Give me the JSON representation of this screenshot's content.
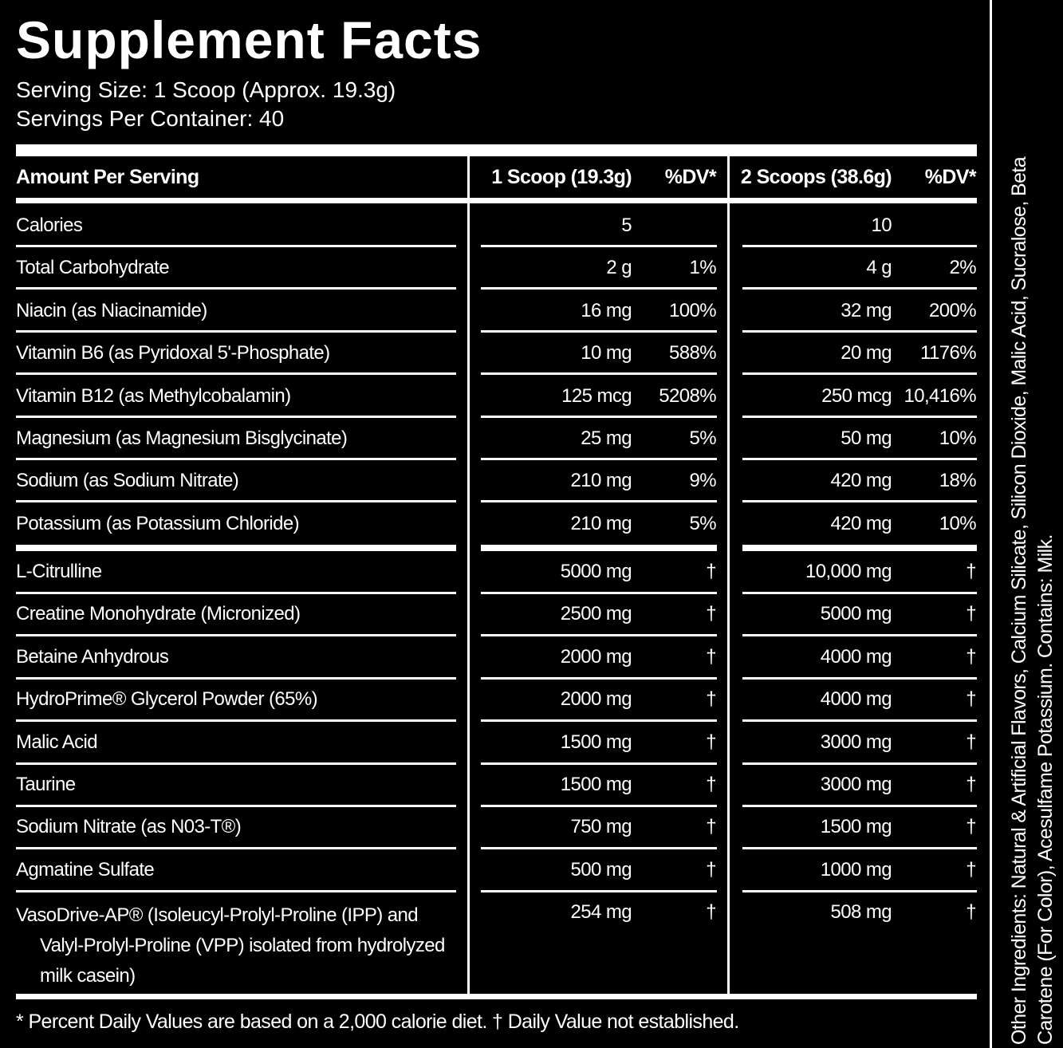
{
  "title": "Supplement Facts",
  "serving_size": "Serving Size: 1 Scoop (Approx. 19.3g)",
  "servings_per_container": "Servings Per Container: 40",
  "table": {
    "header": [
      "Amount Per Serving",
      "1 Scoop (19.3g)",
      "%DV*",
      "2 Scoops (38.6g)",
      "%DV*"
    ],
    "rows": [
      [
        "Calories",
        "5",
        null,
        "10",
        null
      ],
      [
        "Total Carbohydrate",
        "2 g",
        "1%",
        "4 g",
        "2%"
      ],
      [
        "Niacin (as Niacinamide)",
        "16 mg",
        "100%",
        "32 mg",
        "200%"
      ],
      [
        "Vitamin B6 (as Pyridoxal 5'-Phosphate)",
        "10 mg",
        "588%",
        "20 mg",
        "1176%"
      ],
      [
        "Vitamin B12 (as Methylcobalamin)",
        "125 mcg",
        "5208%",
        "250 mcg",
        "10,416%"
      ],
      [
        "Magnesium (as Magnesium Bisglycinate)",
        "25 mg",
        "5%",
        "50 mg",
        "10%"
      ],
      [
        "Sodium (as Sodium Nitrate)",
        "210 mg",
        "9%",
        "420 mg",
        "18%"
      ],
      [
        "Potassium (as Potassium Chloride)",
        "210 mg",
        "5%",
        "420 mg",
        "10%"
      ],
      [
        "L-Citrulline",
        "5000 mg",
        "†",
        "10,000 mg",
        "†"
      ],
      [
        "Creatine Monohydrate (Micronized)",
        "2500 mg",
        "†",
        "5000 mg",
        "†"
      ],
      [
        "Betaine Anhydrous",
        "2000 mg",
        "†",
        "4000 mg",
        "†"
      ],
      [
        "HydroPrime® Glycerol Powder (65%)",
        "2000 mg",
        "†",
        "4000 mg",
        "†"
      ],
      [
        "Malic Acid",
        "1500 mg",
        "†",
        "3000 mg",
        "†"
      ],
      [
        "Taurine",
        "1500 mg",
        "†",
        "3000 mg",
        "†"
      ],
      [
        "Sodium Nitrate (as N03-T®)",
        "750 mg",
        "†",
        "1500 mg",
        "†"
      ],
      [
        "Agmatine Sulfate",
        "500 mg",
        "†",
        "1000 mg",
        "†"
      ],
      [
        "VasoDrive-AP® (Isoleucyl-Prolyl-Proline (IPP) and Valyl-Prolyl-Proline (VPP) isolated from hydrolyzed milk casein)",
        "254 mg",
        "†",
        "508 mg",
        "†"
      ]
    ]
  },
  "footnote": "* Percent Daily Values are based on a 2,000 calorie diet. † Daily Value not established.",
  "other_ingredients": "Other Ingredients: Natural & Artificial Flavors, Calcium Silicate, Silicon Dioxide, Malic Acid, Sucralose, Beta Carotene (For Color), Acesulfame Potassium. Contains: Milk."
}
